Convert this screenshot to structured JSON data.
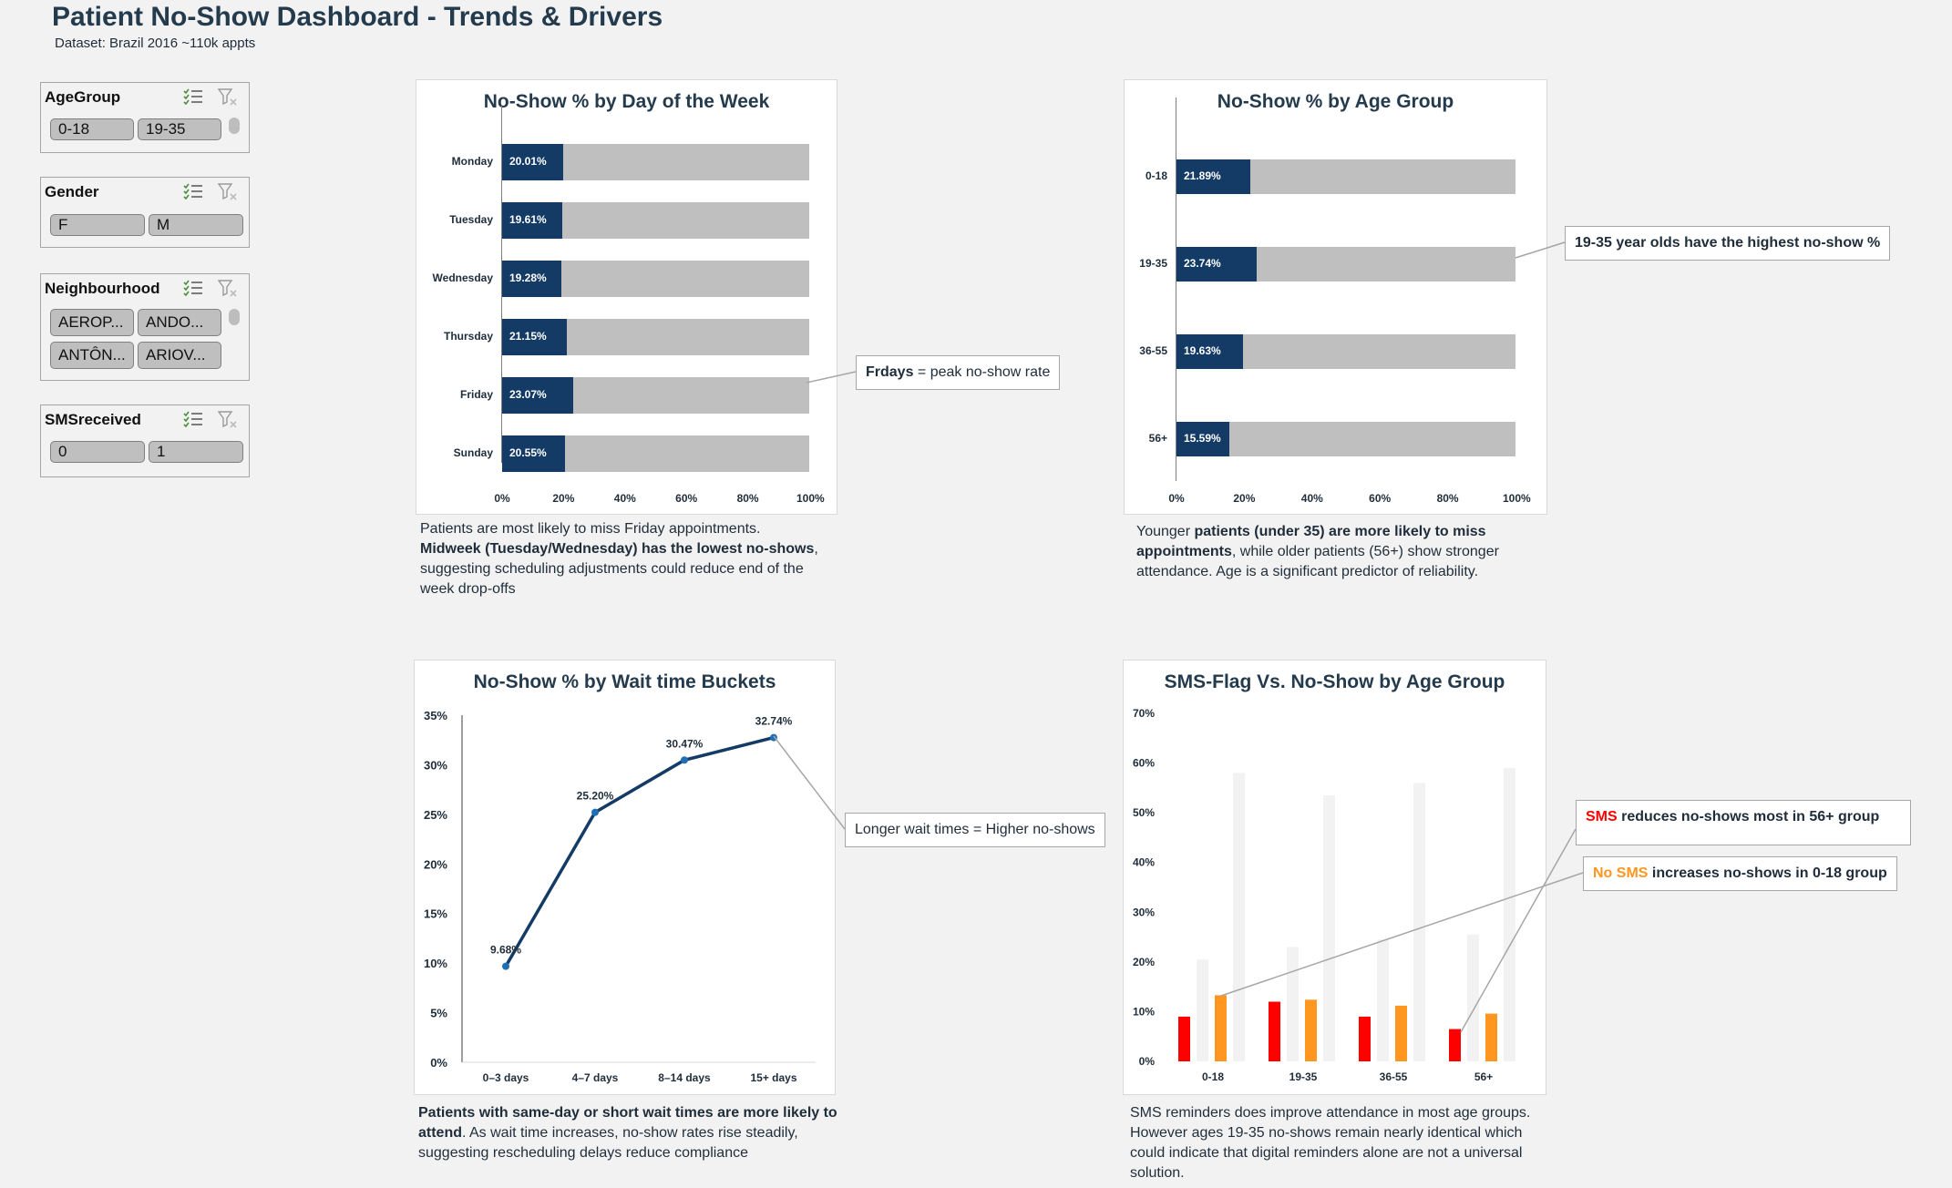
{
  "header": {
    "title": "Patient No-Show Dashboard - Trends & Drivers",
    "subtitle": "Dataset: Brazil 2016 ~110k appts"
  },
  "slicers": [
    {
      "title": "AgeGroup",
      "items": [
        "0-18",
        "19-35"
      ]
    },
    {
      "title": "Gender",
      "items": [
        "F",
        "M"
      ]
    },
    {
      "title": "Neighbourhood",
      "items": [
        "AEROP...",
        "ANDO...",
        "ANTÔN...",
        "ARIOV..."
      ]
    },
    {
      "title": "SMSreceived",
      "items": [
        "0",
        "1"
      ]
    }
  ],
  "chart_data": [
    {
      "type": "bar",
      "title": "No-Show % by Day of the Week",
      "categories": [
        "Monday",
        "Tuesday",
        "Wednesday",
        "Thursday",
        "Friday",
        "Sunday"
      ],
      "values": [
        20.01,
        19.61,
        19.28,
        21.15,
        23.07,
        20.55
      ],
      "labels": [
        "20.01%",
        "19.61%",
        "19.28%",
        "21.15%",
        "23.07%",
        "20.55%"
      ],
      "xticks": [
        "0%",
        "20%",
        "40%",
        "60%",
        "80%",
        "100%"
      ],
      "xlim": [
        0,
        100
      ],
      "colors": {
        "value": "#143a66",
        "remainder": "#bfbfbf"
      }
    },
    {
      "type": "bar",
      "title": "No-Show % by Age Group",
      "categories": [
        "0-18",
        "19-35",
        "36-55",
        "56+"
      ],
      "values": [
        21.89,
        23.74,
        19.63,
        15.59
      ],
      "labels": [
        "21.89%",
        "23.74%",
        "19.63%",
        "15.59%"
      ],
      "xticks": [
        "0%",
        "20%",
        "40%",
        "60%",
        "80%",
        "100%"
      ],
      "xlim": [
        0,
        100
      ],
      "colors": {
        "value": "#143a66",
        "remainder": "#bfbfbf"
      }
    },
    {
      "type": "line",
      "title": "No-Show % by Wait time Buckets",
      "categories": [
        "0–3 days",
        "4–7 days",
        "8–14 days",
        "15+ days"
      ],
      "values": [
        9.68,
        25.2,
        30.47,
        32.74
      ],
      "labels": [
        "9.68%",
        "25.20%",
        "30.47%",
        "32.74%"
      ],
      "yticks": [
        "0%",
        "5%",
        "10%",
        "15%",
        "20%",
        "25%",
        "30%",
        "35%"
      ],
      "ylim": [
        0,
        35
      ],
      "colors": {
        "line": "#143a66",
        "marker": "#1f6fb5"
      }
    },
    {
      "type": "bar",
      "title": "SMS-Flag Vs. No-Show by Age Group",
      "categories": [
        "0-18",
        "19-35",
        "36-55",
        "56+"
      ],
      "series": [
        {
          "values": [
            9,
            12,
            9,
            6.5
          ],
          "color": "#ff0000"
        },
        {
          "values": [
            20.5,
            23,
            24.5,
            25.5
          ],
          "color": "#f2f2f2"
        },
        {
          "values": [
            13.3,
            12.4,
            11.2,
            9.6
          ],
          "color": "#ff961f"
        },
        {
          "values": [
            58,
            53.5,
            56,
            59
          ],
          "color": "#f2f2f2"
        }
      ],
      "yticks": [
        "0%",
        "10%",
        "20%",
        "30%",
        "40%",
        "50%",
        "60%",
        "70%"
      ],
      "ylim": [
        0,
        70
      ]
    }
  ],
  "callouts": {
    "friday": {
      "bold": "Frdays",
      "text": " = peak no-show rate"
    },
    "age": {
      "text": "19-35 year olds have the highest no-show %"
    },
    "wait": {
      "text": "Longer wait times = Higher no-shows"
    },
    "sms": {
      "highlight": "SMS",
      "text": " reduces no-shows most in 56+ group",
      "color": "#ff0000"
    },
    "nosms": {
      "highlight": "No SMS",
      "text": " increases no-shows in 0-18 group",
      "color": "#ff961f"
    }
  },
  "notes": {
    "day": {
      "t1": "Patients are most likely to miss Friday appointments.",
      "b1": "Midweek (Tuesday/Wednesday) has the lowest no-shows",
      "t2": ", suggesting scheduling adjustments could reduce end of the week drop-offs"
    },
    "age": {
      "t1": "Younger ",
      "b1": "patients (under 35) are more likely to miss appointments",
      "t2": ", while older patients (56+) show stronger attendance. Age is a significant predictor of reliability."
    },
    "wait": {
      "b1": "Patients with same-day or short wait times are more likely to attend",
      "t1": ". As wait time increases, no-show rates rise steadily, suggesting rescheduling delays reduce compliance"
    },
    "sms": {
      "t1": "SMS reminders does improve attendance in most age groups. However ages 19-35 no-shows remain nearly identical which could indicate that digital reminders alone are not a universal solution."
    }
  }
}
